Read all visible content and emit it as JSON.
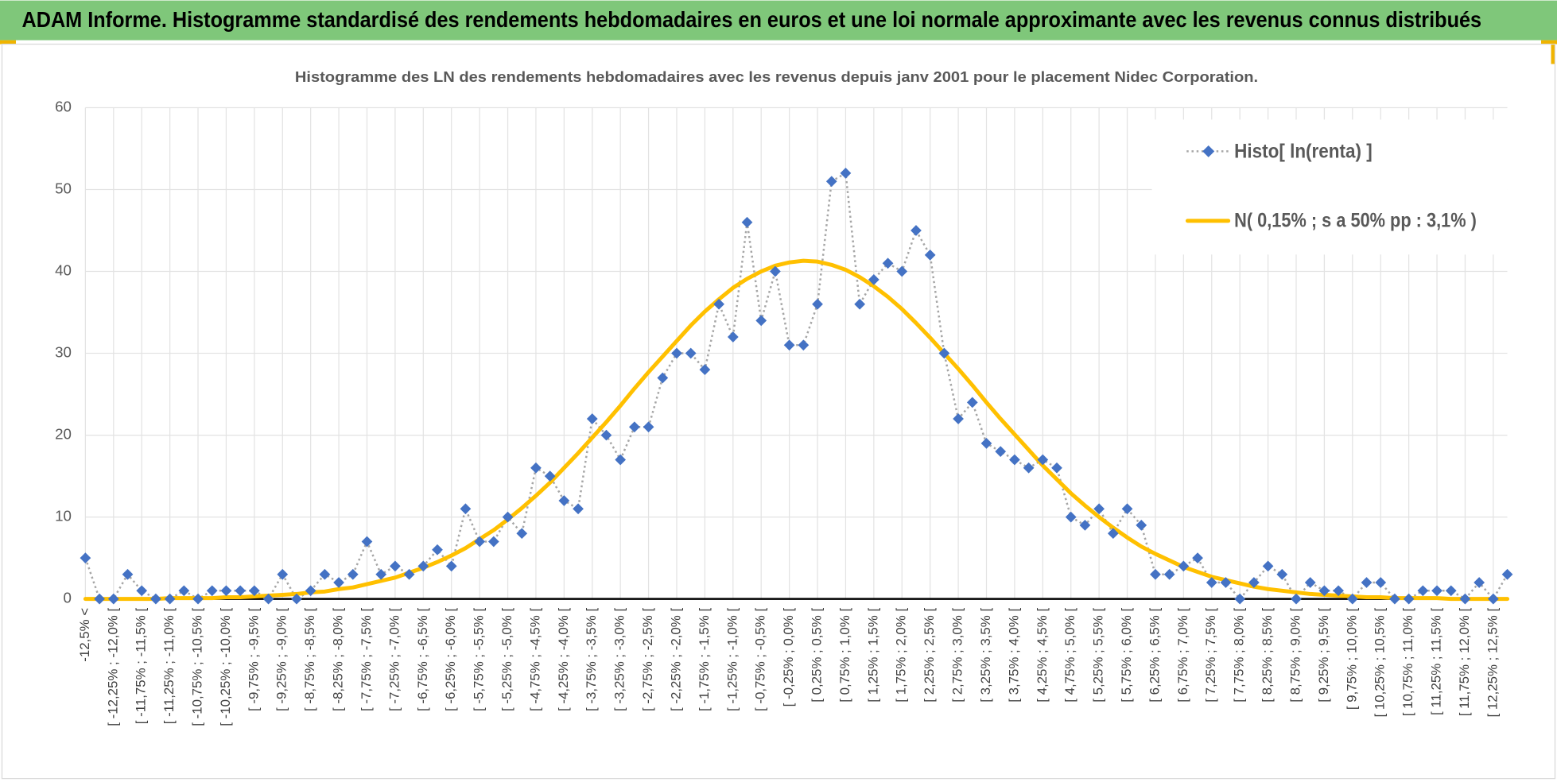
{
  "chart_data": {
    "type": "line",
    "header": "ADAM Informe. Histogramme standardisé des rendements hebdomadaires en euros et une loi normale approximante avec les revenus connus distribués",
    "title": "Histogramme  des LN des rendements hebdomadaires avec les revenus depuis janv 2001 pour le placement Nidec Corporation.",
    "categories": [
      "-12,5% <",
      null,
      "[ -12,25% ; -12,0% [",
      null,
      "[ -11,75% ; -11,5% [",
      null,
      "[ -11,25% ; -11,0% [",
      null,
      "[ -10,75% ; -10,5% [",
      null,
      "[ -10,25% ; -10,0% [",
      null,
      "[ -9,75% ; -9,5% [",
      null,
      "[ -9,25% ; -9,0% [",
      null,
      "[ -8,75% ; -8,5% [",
      null,
      "[ -8,25% ; -8,0% [",
      null,
      "[ -7,75% ; -7,5% [",
      null,
      "[ -7,25% ; -7,0% [",
      null,
      "[ -6,75% ; -6,5% [",
      null,
      "[ -6,25% ; -6,0% [",
      null,
      "[ -5,75% ; -5,5% [",
      null,
      "[ -5,25% ; -5,0% [",
      null,
      "[ -4,75% ; -4,5% [",
      null,
      "[ -4,25% ; -4,0% [",
      null,
      "[ -3,75% ; -3,5% [",
      null,
      "[ -3,25% ; -3,0% [",
      null,
      "[ -2,75% ; -2,5% [",
      null,
      "[ -2,25% ; -2,0% [",
      null,
      "[ -1,75% ; -1,5% [",
      null,
      "[ -1,25% ; -1,0% [",
      null,
      "[ -0,75% ; -0,5% [",
      null,
      "[ -0,25% ; 0,0% [",
      null,
      "[ 0,25% ; 0,5% [",
      null,
      "[ 0,75% ; 1,0% [",
      null,
      "[ 1,25% ; 1,5% [",
      null,
      "[ 1,75% ; 2,0% [",
      null,
      "[ 2,25% ; 2,5% [",
      null,
      "[ 2,75% ; 3,0% [",
      null,
      "[ 3,25% ; 3,5% [",
      null,
      "[ 3,75% ; 4,0% [",
      null,
      "[ 4,25% ; 4,5% [",
      null,
      "[ 4,75% ; 5,0% [",
      null,
      "[ 5,25% ; 5,5% [",
      null,
      "[ 5,75% ; 6,0% [",
      null,
      "[ 6,25% ; 6,5% [",
      null,
      "[ 6,75% ; 7,0% [",
      null,
      "[ 7,25% ; 7,5% [",
      null,
      "[ 7,75% ; 8,0% [",
      null,
      "[ 8,25% ; 8,5% [",
      null,
      "[ 8,75% ; 9,0% [",
      null,
      "[ 9,25% ; 9,5% [",
      null,
      "[ 9,75% ; 10,0% [",
      null,
      "[ 10,25% ; 10,5% [",
      null,
      "[ 10,75% ; 11,0% [",
      null,
      "[ 11,25% ; 11,5% [",
      null,
      "[ 11,75% ; 12,0% [",
      null,
      "[ 12,25% ; 12,5% [",
      null
    ],
    "series": [
      {
        "name": "Histo[ ln(renta) ]",
        "color": "#4472c4",
        "line_color": "#a6a6a6",
        "values": [
          5,
          0,
          0,
          3,
          1,
          0,
          0,
          1,
          0,
          1,
          1,
          1,
          1,
          0,
          3,
          0,
          1,
          3,
          2,
          3,
          7,
          3,
          4,
          3,
          4,
          6,
          4,
          11,
          7,
          7,
          10,
          8,
          16,
          15,
          12,
          11,
          22,
          20,
          17,
          21,
          21,
          27,
          30,
          30,
          28,
          36,
          32,
          46,
          34,
          40,
          31,
          31,
          36,
          51,
          52,
          36,
          39,
          41,
          40,
          45,
          42,
          30,
          22,
          24,
          19,
          18,
          17,
          16,
          17,
          16,
          10,
          9,
          11,
          8,
          11,
          9,
          3,
          3,
          4,
          5,
          2,
          2,
          0,
          2,
          4,
          3,
          0,
          2,
          1,
          1,
          0,
          2,
          2,
          0,
          0,
          1,
          1,
          1,
          0,
          2,
          0,
          3
        ]
      },
      {
        "name": "N( 0,15% ; s a 50% pp : 3,1% )",
        "color": "#ffc000",
        "values": [
          0,
          0,
          0,
          0,
          0,
          0,
          0.1,
          0.1,
          0.1,
          0.1,
          0.2,
          0.2,
          0.3,
          0.4,
          0.5,
          0.6,
          0.8,
          0.9,
          1.2,
          1.4,
          1.8,
          2.2,
          2.6,
          3.2,
          3.8,
          4.5,
          5.3,
          6.2,
          7.3,
          8.4,
          9.7,
          11.1,
          12.6,
          14.2,
          16.0,
          17.8,
          19.7,
          21.6,
          23.6,
          25.7,
          27.7,
          29.6,
          31.5,
          33.4,
          35.1,
          36.6,
          38.0,
          39.1,
          40.0,
          40.7,
          41.1,
          41.3,
          41.2,
          40.8,
          40.2,
          39.3,
          38.2,
          36.9,
          35.4,
          33.7,
          31.9,
          30.0,
          28.1,
          26.1,
          24.0,
          22.0,
          20.1,
          18.2,
          16.3,
          14.6,
          12.9,
          11.4,
          10.0,
          8.7,
          7.5,
          6.4,
          5.5,
          4.7,
          3.9,
          3.3,
          2.7,
          2.3,
          1.9,
          1.5,
          1.2,
          1.0,
          0.8,
          0.6,
          0.5,
          0.4,
          0.3,
          0.2,
          0.2,
          0.1,
          0.1,
          0.1,
          0.1,
          0,
          0,
          0,
          0,
          0
        ]
      }
    ],
    "ylim": [
      0,
      60
    ],
    "yticks": [
      0,
      10,
      20,
      30,
      40,
      50,
      60
    ],
    "grid": true,
    "legend": "top-right"
  }
}
